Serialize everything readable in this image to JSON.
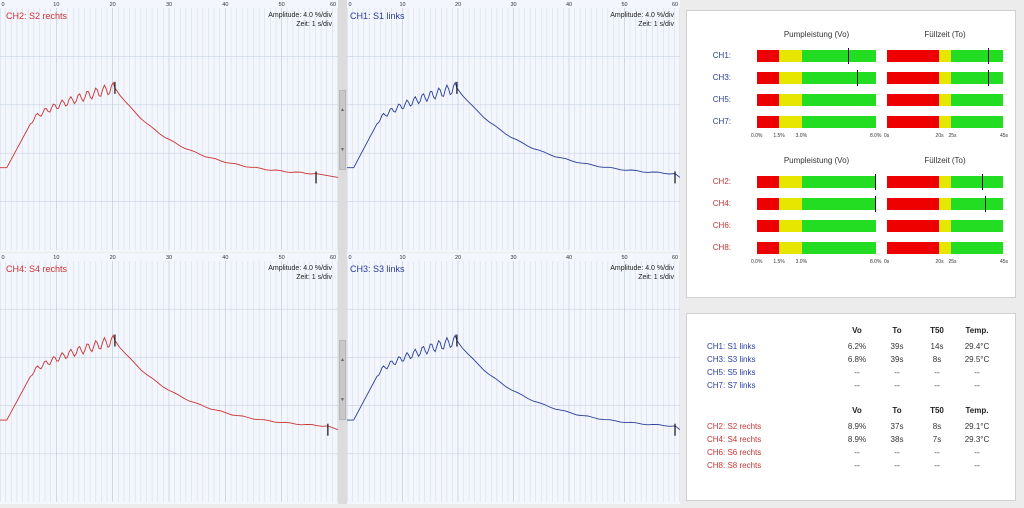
{
  "colors": {
    "red": "#cc3333",
    "blue": "#2a3d9a",
    "bar_red": "#ee0000",
    "bar_yellow": "#e6e600",
    "bar_green": "#22dd22"
  },
  "axis_ticks": [
    "0",
    "10",
    "20",
    "30",
    "40",
    "50",
    "60"
  ],
  "charts": [
    {
      "title": "CH2: S2 rechts",
      "color": "red",
      "amplitude": "Amplitude: 4.0 %/div",
      "zeit": "Zeit: 1 s/div",
      "show_top_ticks": true,
      "peak": 0.34,
      "end": 0.935
    },
    {
      "title": "CH1: S1 links",
      "color": "blue",
      "amplitude": "Amplitude: 4.0 %/div",
      "zeit": "Zeit: 1 s/div",
      "show_top_ticks": true,
      "peak": 0.33,
      "end": 0.985
    },
    {
      "title": "CH4: S4 rechts",
      "color": "red",
      "amplitude": "Amplitude: 4.0 %/div",
      "zeit": "Zeit: 1 s/div",
      "show_top_ticks": true,
      "peak": 0.34,
      "end": 0.97
    },
    {
      "title": "CH3: S3 links",
      "color": "blue",
      "amplitude": "Amplitude: 4.0 %/div",
      "zeit": "Zeit: 1 s/div",
      "show_top_ticks": true,
      "peak": 0.33,
      "end": 0.985
    }
  ],
  "bar_groups": [
    {
      "headers": {
        "pump": "Pumpleistung (Vo)",
        "fill": "Füllzeit (To)"
      },
      "color": "blue",
      "rows": [
        {
          "label": "CH1:",
          "vo": 6.2,
          "to": 39
        },
        {
          "label": "CH3:",
          "vo": 6.8,
          "to": 39
        },
        {
          "label": "CH5:",
          "vo": null,
          "to": null
        },
        {
          "label": "CH7:",
          "vo": null,
          "to": null
        }
      ],
      "vo_ticks": [
        "0.0%",
        "1.5%",
        "3.0%",
        "8.0%"
      ],
      "to_ticks": [
        "0s",
        "20s",
        "25s",
        "45s"
      ]
    },
    {
      "headers": {
        "pump": "Pumpleistung (Vo)",
        "fill": "Füllzeit (To)"
      },
      "color": "red",
      "rows": [
        {
          "label": "CH2:",
          "vo": 8.9,
          "to": 37
        },
        {
          "label": "CH4:",
          "vo": 8.9,
          "to": 38
        },
        {
          "label": "CH6:",
          "vo": null,
          "to": null
        },
        {
          "label": "CH8:",
          "vo": null,
          "to": null
        }
      ],
      "vo_ticks": [
        "0.0%",
        "1.5%",
        "3.0%",
        "8.0%"
      ],
      "to_ticks": [
        "0s",
        "20s",
        "25s",
        "45s"
      ]
    }
  ],
  "table": {
    "columns": [
      "Vo",
      "To",
      "T50",
      "Temp."
    ],
    "groups": [
      {
        "color": "blue",
        "rows": [
          {
            "name": "CH1: S1 links",
            "cells": [
              "6.2%",
              "39s",
              "14s",
              "29.4°C"
            ]
          },
          {
            "name": "CH3: S3 links",
            "cells": [
              "6.8%",
              "39s",
              "8s",
              "29.5°C"
            ]
          },
          {
            "name": "CH5: S5 links",
            "cells": [
              "--",
              "--",
              "--",
              "--"
            ]
          },
          {
            "name": "CH7: S7 links",
            "cells": [
              "--",
              "--",
              "--",
              "--"
            ]
          }
        ]
      },
      {
        "color": "red",
        "rows": [
          {
            "name": "CH2: S2 rechts",
            "cells": [
              "8.9%",
              "37s",
              "8s",
              "29.1°C"
            ]
          },
          {
            "name": "CH4: S4 rechts",
            "cells": [
              "8.9%",
              "38s",
              "7s",
              "29.3°C"
            ]
          },
          {
            "name": "CH6: S6 rechts",
            "cells": [
              "--",
              "--",
              "--",
              "--"
            ]
          },
          {
            "name": "CH8: S8 rechts",
            "cells": [
              "--",
              "--",
              "--",
              "--"
            ]
          }
        ]
      }
    ]
  }
}
